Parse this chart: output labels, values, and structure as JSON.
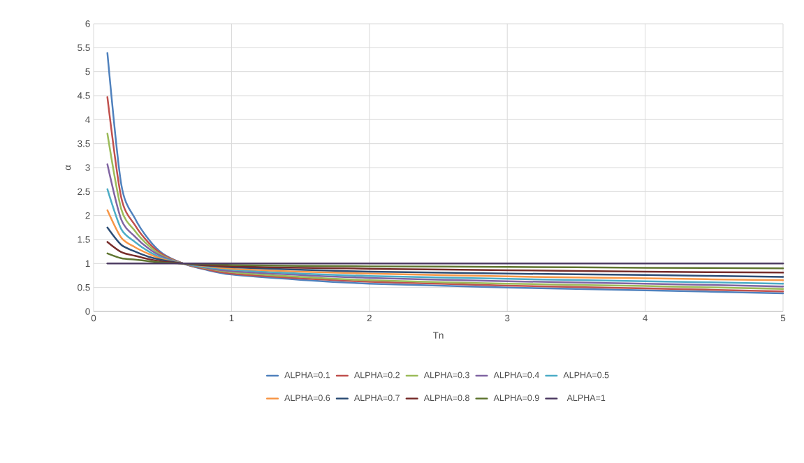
{
  "chart_data": {
    "type": "line",
    "xlabel": "Tn",
    "ylabel": "α",
    "xlim": [
      0,
      5
    ],
    "ylim": [
      0,
      6
    ],
    "xticks": [
      0,
      1,
      2,
      3,
      4,
      5
    ],
    "yticks": [
      0,
      0.5,
      1,
      1.5,
      2,
      2.5,
      3,
      3.5,
      4,
      4.5,
      5,
      5.5,
      6
    ],
    "grid": true,
    "legend": "bottom",
    "x": [
      0.1,
      0.2,
      0.3,
      0.4,
      0.5,
      0.65,
      0.8,
      1,
      1.5,
      2,
      3,
      4,
      5
    ],
    "series": [
      {
        "name": "ALPHA=0.1",
        "color": "#4f81bd",
        "values": [
          5.39,
          2.66,
          1.94,
          1.5,
          1.21,
          1,
          0.88,
          0.77,
          0.66,
          0.58,
          0.5,
          0.44,
          0.38
        ]
      },
      {
        "name": "ALPHA=0.2",
        "color": "#c0504d",
        "values": [
          4.47,
          2.38,
          1.8,
          1.43,
          1.19,
          1,
          0.89,
          0.79,
          0.69,
          0.62,
          0.54,
          0.48,
          0.42
        ]
      },
      {
        "name": "ALPHA=0.3",
        "color": "#9bbb59",
        "values": [
          3.71,
          2.14,
          1.68,
          1.37,
          1.16,
          1,
          0.91,
          0.82,
          0.72,
          0.65,
          0.58,
          0.53,
          0.47
        ]
      },
      {
        "name": "ALPHA=0.4",
        "color": "#8064a2",
        "values": [
          3.07,
          1.92,
          1.56,
          1.31,
          1.14,
          1,
          0.92,
          0.84,
          0.76,
          0.7,
          0.63,
          0.58,
          0.52
        ]
      },
      {
        "name": "ALPHA=0.5",
        "color": "#4bacc6",
        "values": [
          2.55,
          1.72,
          1.45,
          1.25,
          1.11,
          1,
          0.93,
          0.87,
          0.79,
          0.74,
          0.68,
          0.63,
          0.58
        ]
      },
      {
        "name": "ALPHA=0.6",
        "color": "#f79646",
        "values": [
          2.11,
          1.54,
          1.34,
          1.2,
          1.09,
          1,
          0.95,
          0.89,
          0.83,
          0.79,
          0.73,
          0.69,
          0.65
        ]
      },
      {
        "name": "ALPHA=0.7",
        "color": "#2c4d75",
        "values": [
          1.75,
          1.39,
          1.25,
          1.14,
          1.07,
          1,
          0.96,
          0.92,
          0.87,
          0.83,
          0.79,
          0.76,
          0.72
        ]
      },
      {
        "name": "ALPHA=0.8",
        "color": "#772c2a",
        "values": [
          1.45,
          1.24,
          1.16,
          1.09,
          1.04,
          1,
          0.97,
          0.94,
          0.91,
          0.89,
          0.86,
          0.83,
          0.81
        ]
      },
      {
        "name": "ALPHA=0.9",
        "color": "#5f7530",
        "values": [
          1.21,
          1.11,
          1.08,
          1.05,
          1.02,
          1,
          0.99,
          0.97,
          0.95,
          0.94,
          0.93,
          0.91,
          0.9
        ]
      },
      {
        "name": "ALPHA=1",
        "color": "#4d3b62",
        "values": [
          1,
          1,
          1,
          1,
          1,
          1,
          1,
          1,
          1,
          1,
          1,
          1,
          1
        ]
      }
    ]
  }
}
